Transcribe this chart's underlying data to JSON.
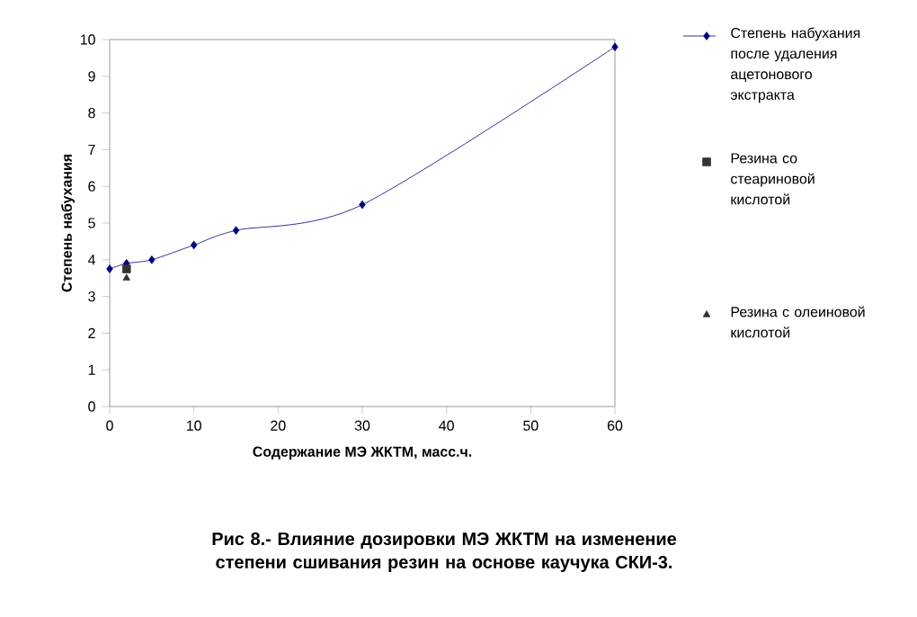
{
  "chart_data": {
    "type": "line",
    "xlabel": "Содержание МЭ ЖКТМ, масс.ч.",
    "ylabel": "Степень набухания",
    "annotations": [
      "Рис 8.- Влияние дозировки МЭ ЖКТМ на изменение степени сшивания резин на основе каучука СКИ-3."
    ],
    "xlim": [
      0,
      60
    ],
    "xticks": [
      0,
      10,
      20,
      30,
      40,
      50,
      60
    ],
    "ylim": [
      0,
      10
    ],
    "yticks": [
      0,
      1,
      2,
      3,
      4,
      5,
      6,
      7,
      8,
      9,
      10
    ],
    "grid": false,
    "legend": "right",
    "line_style": "solid",
    "series": [
      {
        "name": "Степень набухания после удаления ацетонового экстракта",
        "type": "line",
        "marker": "diamond",
        "color": "#000080",
        "x": [
          0,
          2,
          5,
          10,
          15,
          30,
          60
        ],
        "values": [
          3.75,
          3.9,
          4.0,
          4.4,
          4.8,
          5.5,
          9.8
        ]
      },
      {
        "name": "Резина со стеариновой кислотой",
        "type": "scatter",
        "marker": "square",
        "color": "#333333",
        "x": [
          2
        ],
        "values": [
          3.75
        ]
      },
      {
        "name": "Резина с олеиновой кислотой",
        "type": "scatter",
        "marker": "triangle",
        "color": "#333333",
        "x": [
          2
        ],
        "values": [
          3.5
        ]
      }
    ]
  }
}
